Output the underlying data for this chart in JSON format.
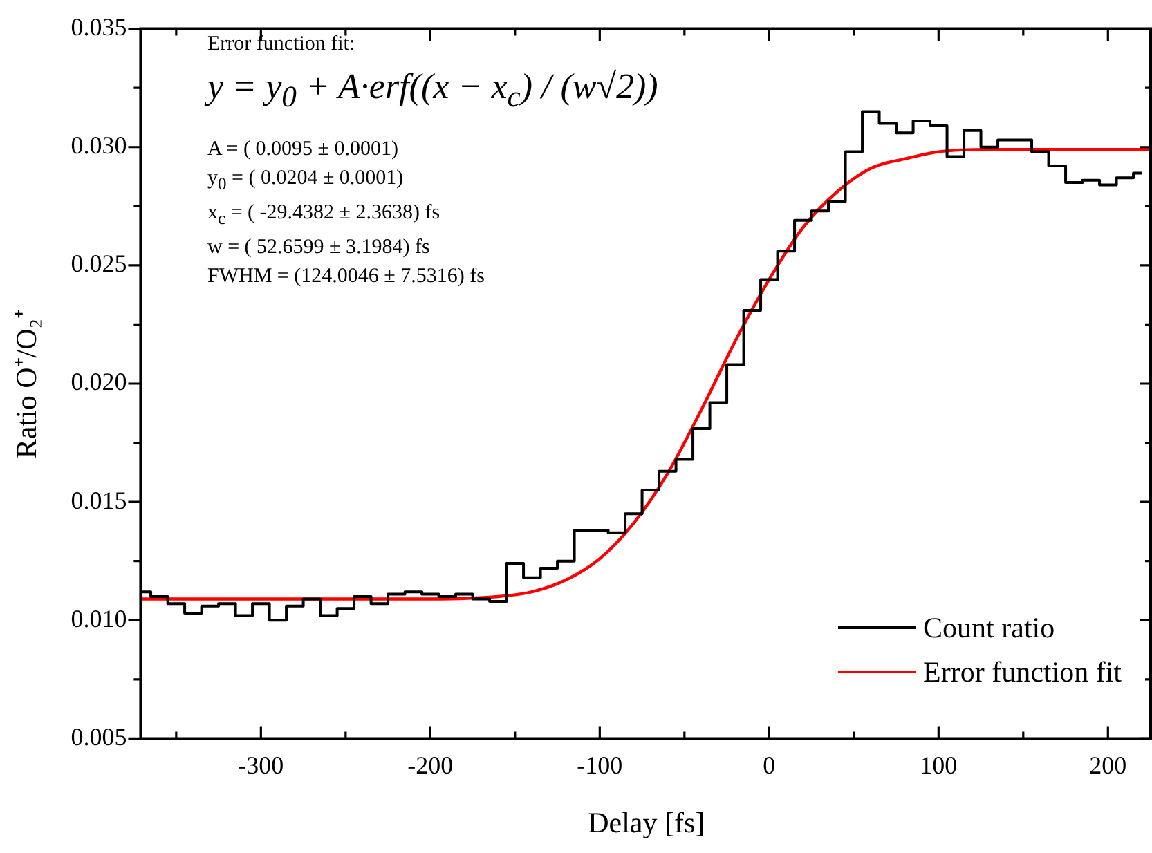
{
  "chart_data": {
    "type": "line",
    "xlabel": "Delay [fs]",
    "ylabel": "Ratio O⁺/O₂⁺",
    "xlim": [
      -371,
      226
    ],
    "ylim": [
      0.005,
      0.035
    ],
    "xticks": [
      {
        "value": -350,
        "label": null
      },
      {
        "value": -300,
        "label": "-300"
      },
      {
        "value": -250,
        "label": null
      },
      {
        "value": -200,
        "label": "-200"
      },
      {
        "value": -150,
        "label": null
      },
      {
        "value": -100,
        "label": "-100"
      },
      {
        "value": -50,
        "label": null
      },
      {
        "value": 0,
        "label": "0"
      },
      {
        "value": 50,
        "label": null
      },
      {
        "value": 100,
        "label": "100"
      },
      {
        "value": 150,
        "label": null
      },
      {
        "value": 200,
        "label": "200"
      }
    ],
    "yticks": [
      {
        "value": 0.005,
        "label": "0.005"
      },
      {
        "value": 0.0075,
        "label": null
      },
      {
        "value": 0.01,
        "label": "0.010"
      },
      {
        "value": 0.0125,
        "label": null
      },
      {
        "value": 0.015,
        "label": "0.015"
      },
      {
        "value": 0.0175,
        "label": null
      },
      {
        "value": 0.02,
        "label": "0.020"
      },
      {
        "value": 0.0225,
        "label": null
      },
      {
        "value": 0.025,
        "label": "0.025"
      },
      {
        "value": 0.0275,
        "label": null
      },
      {
        "value": 0.03,
        "label": "0.030"
      },
      {
        "value": 0.0325,
        "label": null
      },
      {
        "value": 0.035,
        "label": "0.035"
      }
    ],
    "grid": false,
    "legend": "bottom right",
    "marker": "none",
    "line_style": "solid",
    "series": [
      {
        "name": "Count ratio",
        "type": "step",
        "color": "#000000",
        "x": [
          -370,
          -360,
          -350,
          -340,
          -330,
          -320,
          -310,
          -300,
          -290,
          -280,
          -270,
          -260,
          -250,
          -240,
          -230,
          -220,
          -210,
          -200,
          -190,
          -180,
          -170,
          -160,
          -150,
          -140,
          -130,
          -120,
          -110,
          -100,
          -90,
          -80,
          -70,
          -60,
          -50,
          -40,
          -30,
          -20,
          -10,
          0,
          10,
          20,
          30,
          40,
          50,
          60,
          70,
          80,
          90,
          100,
          110,
          120,
          130,
          140,
          150,
          160,
          170,
          180,
          190,
          200,
          210,
          220
        ],
        "values": [
          0.0112,
          0.011,
          0.0107,
          0.0103,
          0.0106,
          0.0107,
          0.0102,
          0.0107,
          0.01,
          0.0106,
          0.0109,
          0.0102,
          0.0105,
          0.011,
          0.0107,
          0.0111,
          0.0112,
          0.0111,
          0.011,
          0.0111,
          0.0109,
          0.0108,
          0.0124,
          0.0118,
          0.0122,
          0.0125,
          0.0138,
          0.0138,
          0.0137,
          0.0145,
          0.0155,
          0.0163,
          0.0168,
          0.0181,
          0.0192,
          0.0208,
          0.0231,
          0.0244,
          0.0256,
          0.0269,
          0.0273,
          0.0277,
          0.0298,
          0.0315,
          0.031,
          0.0306,
          0.0311,
          0.0309,
          0.0296,
          0.0307,
          0.03,
          0.0303,
          0.0303,
          0.0298,
          0.0292,
          0.0285,
          0.0286,
          0.0284,
          0.0287,
          0.0289
        ]
      },
      {
        "name": "Error function fit",
        "type": "line",
        "color": "#ff0000",
        "x": [
          -371,
          -250,
          -200,
          -160,
          -140,
          -120,
          -100,
          -80,
          -60,
          -40,
          -20,
          0,
          20,
          40,
          60,
          80,
          100,
          130,
          226
        ],
        "values": [
          0.0109,
          0.0109,
          0.0109,
          0.011,
          0.0112,
          0.0117,
          0.0126,
          0.0141,
          0.0162,
          0.0189,
          0.0218,
          0.0244,
          0.0266,
          0.0281,
          0.0291,
          0.0295,
          0.0298,
          0.0299,
          0.0299
        ]
      }
    ],
    "annotations": [
      "Error function fit:",
      "y = y$_{0}$ + A·erf((x − x$_{c}$) / (w√2))",
      "A = ( 0.0095 ± 0.0001)",
      "y$_{0}$ = ( 0.0204 ± 0.0001)",
      "x$_{c}$ = ( -29.4382 ± 2.3638) fs",
      "w = ( 52.6599 ± 3.1984) fs",
      "FWHM = (124.0046 ± 7.5316) fs"
    ]
  }
}
